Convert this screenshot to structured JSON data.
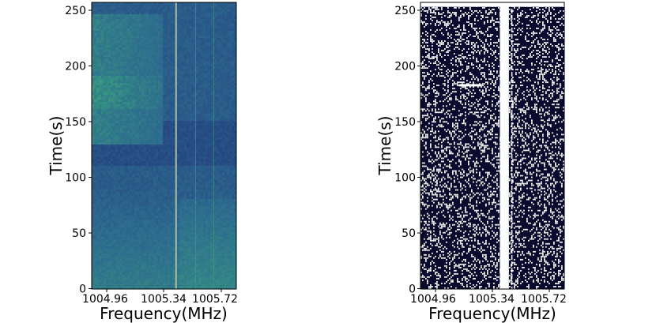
{
  "chart_data": [
    {
      "type": "heatmap",
      "panel": "left",
      "colormap": "viridis-like (dark blue to green)",
      "xlabel": "Frequency(MHz)",
      "ylabel": "Time(s)",
      "xlim": [
        1004.86,
        1005.82
      ],
      "ylim": [
        0,
        256
      ],
      "xticks": [
        1004.96,
        1005.34,
        1005.72
      ],
      "xtick_labels": [
        "1004.96",
        "1005.34",
        "1005.72"
      ],
      "yticks": [
        0,
        50,
        100,
        150,
        200,
        250
      ],
      "ytick_labels": [
        "0",
        "50",
        "100",
        "150",
        "200",
        "250"
      ],
      "features": {
        "bright_band_time_range": [
          130,
          245
        ],
        "bright_band_freq_range": [
          1004.86,
          1005.34
        ],
        "vertical_lines_mhz": [
          1005.42,
          1005.55,
          1005.67
        ]
      },
      "colors": {
        "low": "#1f2f78",
        "mid": "#2d6a8e",
        "high": "#3aa57e"
      }
    },
    {
      "type": "heatmap",
      "panel": "right",
      "colormap": "binary mask (dark navy / white)",
      "xlabel": "Frequency(MHz)",
      "ylabel": "Time(s)",
      "xlim": [
        1004.86,
        1005.82
      ],
      "ylim": [
        0,
        256
      ],
      "xticks": [
        1004.96,
        1005.34,
        1005.72
      ],
      "xtick_labels": [
        "1004.96",
        "1005.34",
        "1005.72"
      ],
      "yticks": [
        0,
        50,
        100,
        150,
        200,
        250
      ],
      "ytick_labels": [
        "0",
        "50",
        "100",
        "150",
        "200",
        "250"
      ],
      "features": {
        "white_column_freq_range": [
          1005.39,
          1005.45
        ],
        "white_line_mhz": 1005.47,
        "white_top_row_time_range": [
          252,
          256
        ],
        "white_streak": {
          "time": 182,
          "freq_range": [
            1005.12,
            1005.27
          ]
        }
      },
      "colors": {
        "background": "#0a0a2e",
        "mask": "#ffffff"
      }
    }
  ]
}
